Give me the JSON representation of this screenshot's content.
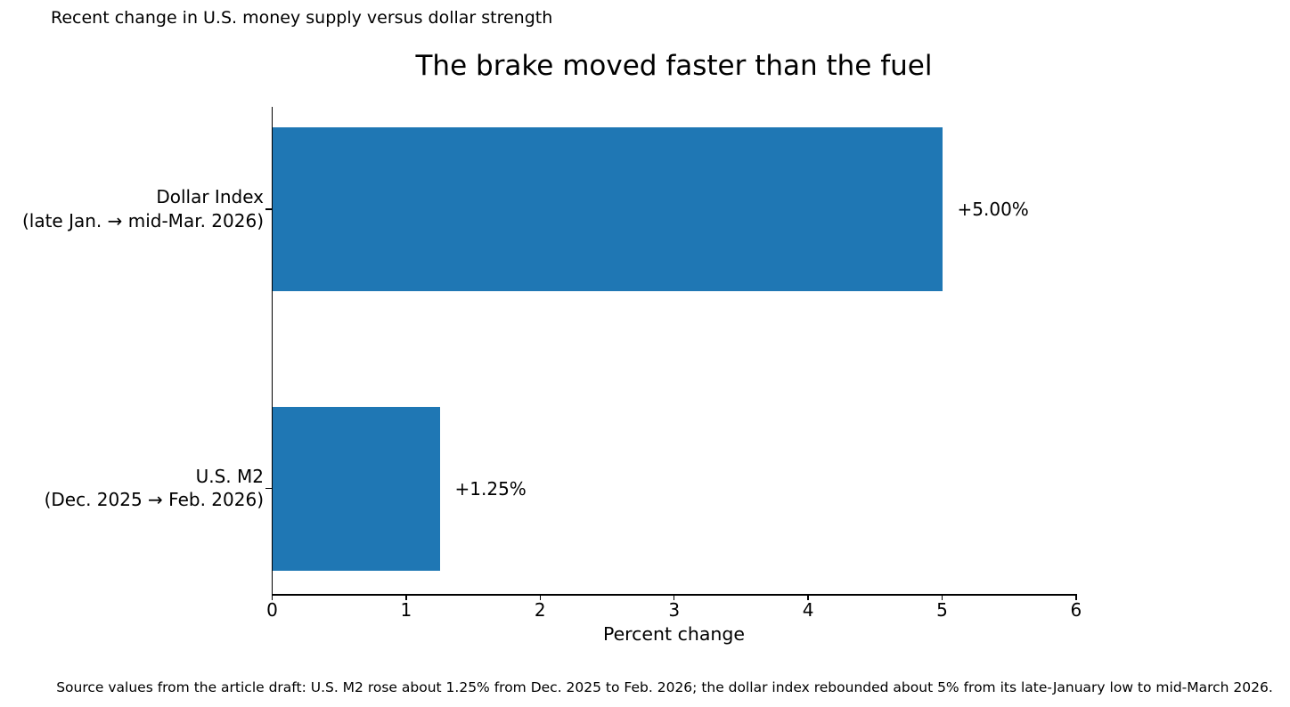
{
  "figure": {
    "note": "Recent change in U.S. money supply versus dollar strength",
    "source_note": "Source values from the article draft: U.S. M2 rose about 1.25% from Dec. 2025 to Feb. 2026; the dollar index rebounded about 5% from its late-January low to mid-March 2026."
  },
  "chart_data": {
    "type": "bar",
    "orientation": "horizontal",
    "title": "The brake moved faster than the fuel",
    "xlabel": "Percent change",
    "ylabel": "",
    "xlim": [
      0,
      6
    ],
    "xticks": [
      0,
      1,
      2,
      3,
      4,
      5,
      6
    ],
    "grid": false,
    "legend": "none",
    "bar_color": "#1f77b4",
    "categories": [
      "Dollar Index\n(late Jan. → mid-Mar. 2026)",
      "U.S. M2\n(Dec. 2025 → Feb. 2026)"
    ],
    "values": [
      5.0,
      1.25
    ],
    "value_labels": [
      "+5.00%",
      "+1.25%"
    ]
  }
}
